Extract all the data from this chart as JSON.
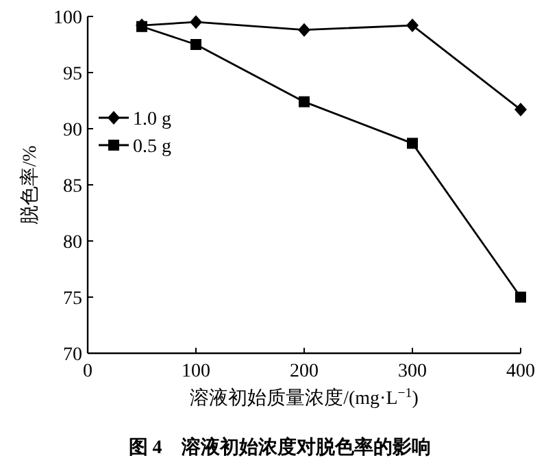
{
  "chart_data": {
    "type": "line",
    "title": "图 4　溶液初始浓度对脱色率的影响",
    "xlabel": "溶液初始质量浓度/(mg·L$^{−1}$)",
    "ylabel": "脱色率/%",
    "x": [
      50,
      100,
      200,
      300,
      400
    ],
    "series": [
      {
        "name": "1.0 g",
        "color": "#000000",
        "marker": "diamond",
        "values": [
          99.2,
          99.5,
          98.8,
          99.2,
          91.7
        ]
      },
      {
        "name": "0.5 g",
        "color": "#000000",
        "marker": "square",
        "values": [
          99.1,
          97.5,
          92.4,
          88.7,
          75.0
        ]
      }
    ],
    "xlim": [
      0,
      400
    ],
    "xticks": [
      0,
      100,
      200,
      300,
      400
    ],
    "ylim": [
      70,
      100
    ],
    "yticks": [
      70,
      75,
      80,
      85,
      90,
      95,
      100
    ],
    "grid": false,
    "legend": "left",
    "line_style": "solid"
  }
}
